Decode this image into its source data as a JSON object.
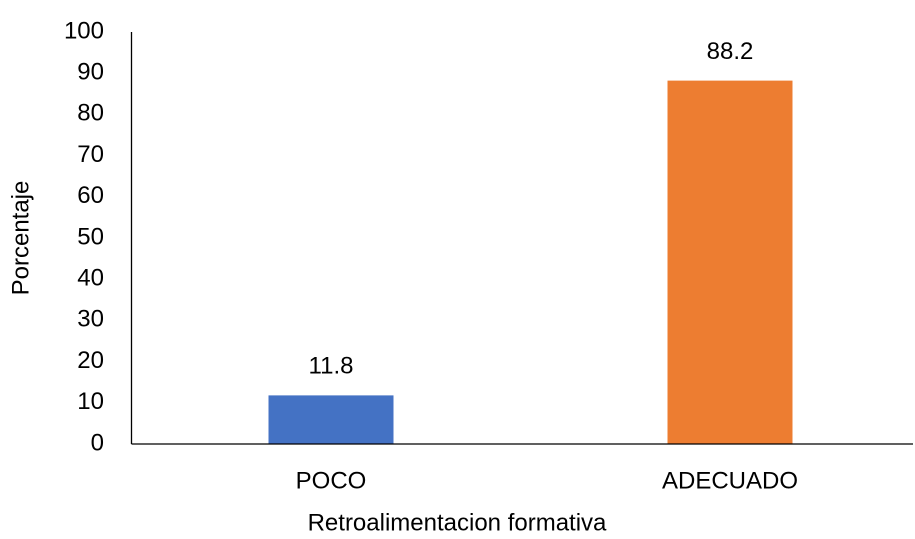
{
  "chart_data": {
    "type": "bar",
    "x_label": "Retroalimentacion formativa",
    "y_label": "Porcentaje",
    "categories": [
      "POCO",
      "ADECUADO"
    ],
    "values": [
      11.8,
      88.2
    ],
    "colors": [
      "#4472c4",
      "#ed7d31"
    ],
    "ylim": [
      0,
      100
    ],
    "yticks": [
      0,
      10,
      20,
      30,
      40,
      50,
      60,
      70,
      80,
      90,
      100
    ],
    "grid": false
  }
}
